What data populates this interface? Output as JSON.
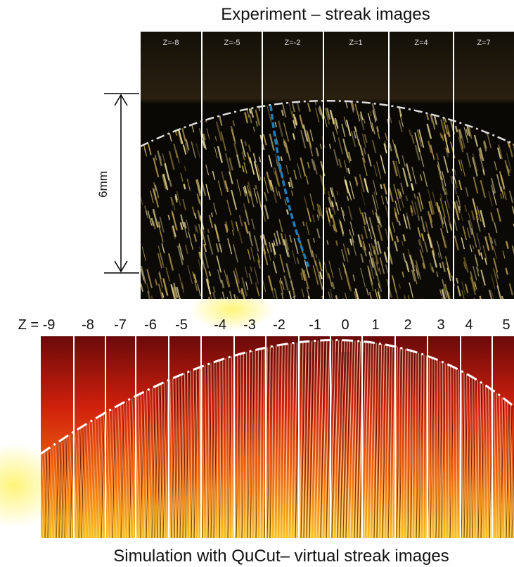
{
  "top": {
    "title": "Experiment – streak images",
    "panel_labels": [
      "Z=-8",
      "Z=-5",
      "Z=-2",
      "Z=1",
      "Z=4",
      "Z=7"
    ],
    "scale_label": "6mm"
  },
  "bottom": {
    "z_labels": [
      "Z = -9",
      "-8",
      "-7",
      "-6",
      "-5",
      "-4",
      "-3",
      "-2",
      "-1",
      "0",
      "1",
      "2",
      "3",
      "4",
      "5"
    ],
    "title": "Simulation  with QuCut– virtual streak images"
  }
}
